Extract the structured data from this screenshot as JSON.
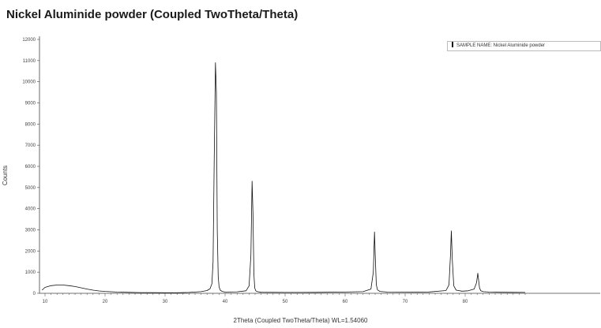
{
  "chart_data": {
    "type": "line",
    "title": "Nickel Aluminide powder (Coupled TwoTheta/Theta)",
    "xlabel": "2Theta (Coupled TwoTheta/Theta) WL=1.54060",
    "ylabel": "Counts",
    "xlim": [
      10,
      90
    ],
    "ylim": [
      0,
      12000
    ],
    "x_ticks": [
      10,
      20,
      30,
      40,
      50,
      60,
      70,
      80
    ],
    "y_ticks": [
      0,
      1000,
      2000,
      3000,
      4000,
      5000,
      6000,
      7000,
      8000,
      9000,
      10000,
      11000,
      12000
    ],
    "legend": {
      "position": "top-right",
      "label": "SAMPLE NAME: Nickel Aluminide powder"
    },
    "series": [
      {
        "name": "SAMPLE NAME: Nickel Aluminide powder",
        "color": "#111111",
        "x": [
          9.5,
          10,
          11,
          12,
          13,
          14,
          15,
          16,
          17,
          18,
          19,
          20,
          22,
          24,
          26,
          28,
          30,
          32,
          34,
          36,
          37,
          37.5,
          37.8,
          38.0,
          38.2,
          38.4,
          38.55,
          38.7,
          38.85,
          39.0,
          39.2,
          39.5,
          40,
          42,
          43.5,
          44.0,
          44.3,
          44.5,
          44.65,
          44.8,
          44.95,
          45.1,
          45.4,
          46,
          50,
          55,
          60,
          63,
          64.3,
          64.7,
          64.9,
          65.05,
          65.2,
          65.4,
          65.8,
          67,
          70,
          74,
          76.8,
          77.3,
          77.55,
          77.7,
          77.85,
          78.1,
          78.5,
          79.5,
          80.5,
          81.5,
          81.9,
          82.1,
          82.25,
          82.4,
          82.6,
          83.0,
          84,
          86,
          88,
          90
        ],
        "y": [
          150,
          280,
          360,
          390,
          390,
          360,
          320,
          260,
          200,
          150,
          110,
          90,
          60,
          45,
          35,
          28,
          25,
          25,
          40,
          80,
          130,
          220,
          450,
          1500,
          6500,
          10900,
          9500,
          3000,
          800,
          300,
          150,
          90,
          60,
          70,
          120,
          350,
          1800,
          5300,
          3800,
          900,
          250,
          120,
          80,
          50,
          40,
          45,
          60,
          80,
          200,
          1000,
          2900,
          1500,
          400,
          160,
          90,
          60,
          55,
          65,
          130,
          400,
          1800,
          2950,
          1600,
          350,
          150,
          100,
          120,
          200,
          500,
          950,
          600,
          250,
          120,
          80,
          60,
          50,
          45,
          40
        ]
      }
    ]
  }
}
